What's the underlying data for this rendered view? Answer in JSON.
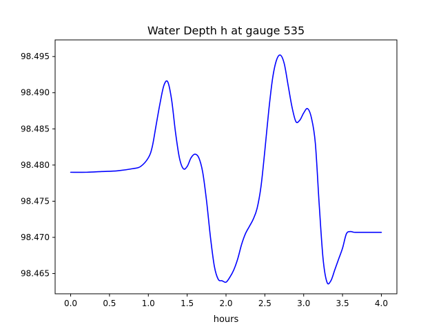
{
  "chart_data": {
    "type": "line",
    "title": "Water Depth h at gauge 535",
    "xlabel": "hours",
    "ylabel": "",
    "xlim": [
      -0.2,
      4.2
    ],
    "ylim": [
      98.4622,
      98.4973
    ],
    "xticks": [
      0.0,
      0.5,
      1.0,
      1.5,
      2.0,
      2.5,
      3.0,
      3.5,
      4.0
    ],
    "xtick_labels": [
      "0.0",
      "0.5",
      "1.0",
      "1.5",
      "2.0",
      "2.5",
      "3.0",
      "3.5",
      "4.0"
    ],
    "yticks": [
      98.465,
      98.47,
      98.475,
      98.48,
      98.485,
      98.49,
      98.495
    ],
    "ytick_labels": [
      "98.465",
      "98.470",
      "98.475",
      "98.480",
      "98.485",
      "98.490",
      "98.495"
    ],
    "grid": false,
    "series": [
      {
        "color": "#0000ff",
        "x": [
          0.0,
          0.2,
          0.4,
          0.6,
          0.8,
          0.9,
          1.0,
          1.05,
          1.1,
          1.15,
          1.2,
          1.25,
          1.3,
          1.35,
          1.4,
          1.45,
          1.5,
          1.55,
          1.6,
          1.65,
          1.7,
          1.75,
          1.8,
          1.85,
          1.9,
          1.95,
          2.0,
          2.05,
          2.1,
          2.15,
          2.2,
          2.25,
          2.3,
          2.35,
          2.4,
          2.45,
          2.5,
          2.55,
          2.6,
          2.65,
          2.7,
          2.75,
          2.8,
          2.85,
          2.9,
          2.95,
          3.0,
          3.05,
          3.1,
          3.15,
          3.2,
          3.25,
          3.3,
          3.35,
          3.4,
          3.45,
          3.5,
          3.55,
          3.6,
          3.65,
          3.7,
          3.75,
          3.8,
          3.85,
          3.9,
          3.95,
          4.0
        ],
        "y": [
          98.479,
          98.479,
          98.4791,
          98.4792,
          98.4795,
          98.4798,
          98.481,
          98.4825,
          98.4855,
          98.4885,
          98.491,
          98.4915,
          98.489,
          98.4845,
          98.481,
          98.4795,
          98.4798,
          98.481,
          98.4815,
          98.481,
          98.479,
          98.475,
          98.47,
          98.466,
          98.4642,
          98.464,
          98.4638,
          98.4645,
          98.4655,
          98.467,
          98.469,
          98.4705,
          98.4715,
          98.4725,
          98.474,
          98.477,
          98.482,
          98.4875,
          98.492,
          98.4945,
          98.4952,
          98.494,
          98.491,
          98.488,
          98.486,
          98.4862,
          98.4872,
          98.4878,
          98.4865,
          98.483,
          98.4745,
          98.467,
          98.4638,
          98.464,
          98.4655,
          98.467,
          98.4685,
          98.4705,
          98.4708,
          98.4707,
          98.4707,
          98.4707,
          98.4707,
          98.4707,
          98.4707,
          98.4707,
          98.4707
        ]
      }
    ]
  }
}
